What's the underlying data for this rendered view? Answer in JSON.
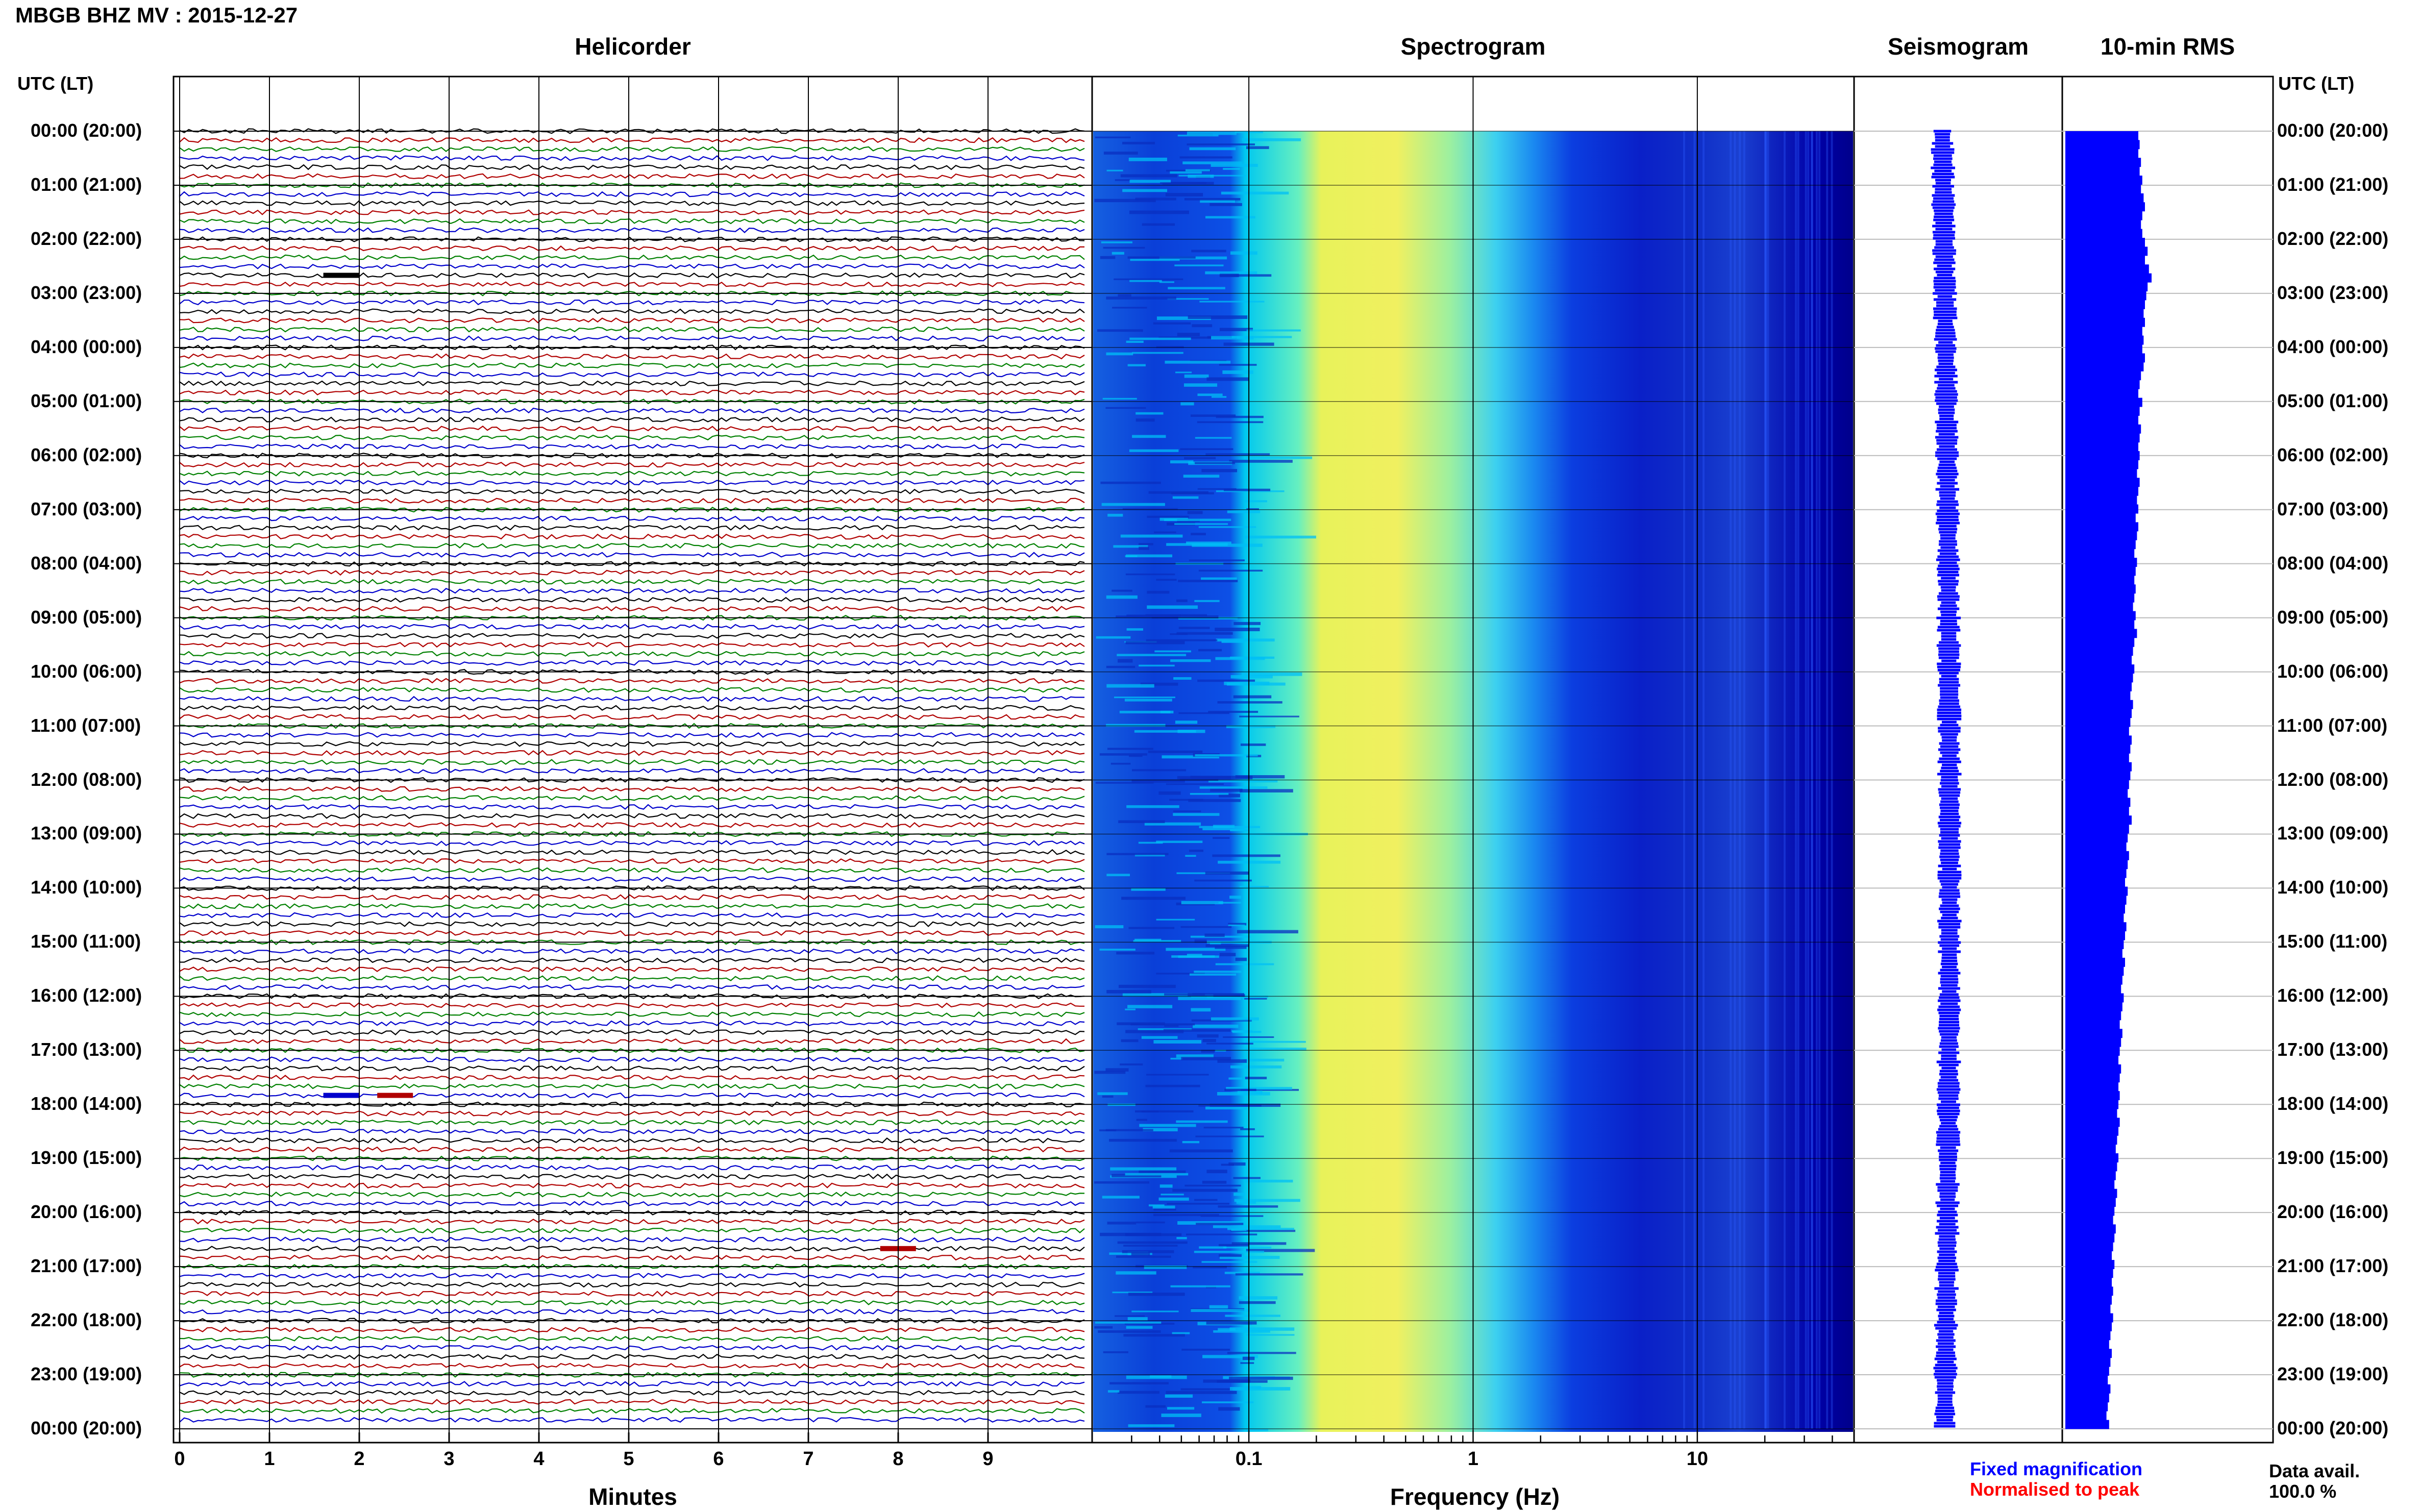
{
  "page": {
    "title": "MBGB BHZ MV : 2015-12-27",
    "time_axis_label": "UTC (LT)",
    "time_labels": [
      "00:00 (20:00)",
      "01:00 (21:00)",
      "02:00 (22:00)",
      "03:00 (23:00)",
      "04:00 (00:00)",
      "05:00 (01:00)",
      "06:00 (02:00)",
      "07:00 (03:00)",
      "08:00 (04:00)",
      "09:00 (05:00)",
      "10:00 (06:00)",
      "11:00 (07:00)",
      "12:00 (08:00)",
      "13:00 (09:00)",
      "14:00 (10:00)",
      "15:00 (11:00)",
      "16:00 (12:00)",
      "17:00 (13:00)",
      "18:00 (14:00)",
      "19:00 (15:00)",
      "20:00 (16:00)",
      "21:00 (17:00)",
      "22:00 (18:00)",
      "23:00 (19:00)",
      "00:00 (20:00)"
    ]
  },
  "panels": {
    "helicorder": {
      "title": "Helicorder",
      "xlabel": "Minutes",
      "xticks": [
        "0",
        "1",
        "2",
        "3",
        "4",
        "5",
        "6",
        "7",
        "8",
        "9"
      ],
      "trace_colors": [
        "#000000",
        "#b00000",
        "#008000",
        "#0000cc"
      ]
    },
    "spectrogram": {
      "title": "Spectrogram",
      "xlabel": "Frequency (Hz)",
      "xticks": [
        "0.1",
        "1",
        "10"
      ],
      "colormap": [
        "#00008b",
        "#0000ff",
        "#1e90ff",
        "#00ffff",
        "#ffff00"
      ]
    },
    "seismogram": {
      "title": "Seismogram"
    },
    "rms": {
      "title": "10-min RMS"
    }
  },
  "legend": {
    "fixed": "Fixed magnification",
    "fixed_color": "#0000ff",
    "normalised": "Normalised to peak",
    "normalised_color": "#ff0000"
  },
  "availability": {
    "label": "Data avail.",
    "value": "100.0 %"
  },
  "chart_data": {
    "type": "heatmap",
    "title": "MBGB BHZ MV : 2015-12-27",
    "helicorder": {
      "x_range_minutes": [
        0,
        10
      ],
      "rows_per_hour": 6,
      "hours": 24,
      "notable_events": [
        {
          "time_utc": "02:40",
          "minute": 1.6,
          "color": "black"
        },
        {
          "time_utc": "17:50",
          "minute": 1.6,
          "color": "blue"
        },
        {
          "time_utc": "17:50",
          "minute": 2.2,
          "color": "darkred"
        },
        {
          "time_utc": "20:40",
          "minute": 7.8,
          "color": "darkred"
        }
      ]
    },
    "spectrogram": {
      "x_scale": "log",
      "x_range_hz": [
        0.02,
        50
      ],
      "peak_band_hz": [
        0.2,
        0.6
      ],
      "description_levels": [
        "low below 0.12 Hz",
        "peak 0.2-0.6 Hz",
        "falling above 1 Hz",
        "minimum above 5 Hz"
      ]
    },
    "rms_10min": {
      "relative_values": [
        0.55,
        0.56,
        0.55,
        0.57,
        0.56,
        0.58,
        0.57,
        0.59,
        0.6,
        0.58,
        0.57,
        0.58,
        0.6,
        0.62,
        0.6,
        0.63,
        0.65,
        0.62,
        0.61,
        0.6,
        0.59,
        0.6,
        0.58,
        0.59,
        0.58,
        0.6,
        0.59,
        0.57,
        0.56,
        0.55,
        0.58,
        0.56,
        0.55,
        0.57,
        0.56,
        0.55,
        0.56,
        0.55,
        0.54,
        0.56,
        0.55,
        0.54,
        0.55,
        0.53,
        0.55,
        0.54,
        0.53,
        0.52,
        0.54,
        0.53,
        0.52,
        0.53,
        0.52,
        0.51,
        0.53,
        0.52,
        0.54,
        0.52,
        0.51,
        0.5,
        0.52,
        0.51,
        0.5,
        0.49,
        0.51,
        0.5,
        0.49,
        0.48,
        0.5,
        0.49,
        0.48,
        0.5,
        0.49,
        0.48,
        0.47,
        0.49,
        0.48,
        0.5,
        0.48,
        0.47,
        0.46,
        0.48,
        0.47,
        0.46,
        0.45,
        0.47,
        0.46,
        0.45,
        0.44,
        0.46,
        0.45,
        0.44,
        0.43,
        0.45,
        0.44,
        0.43,
        0.42,
        0.44,
        0.43,
        0.42,
        0.41,
        0.43,
        0.42,
        0.41,
        0.4,
        0.42,
        0.41,
        0.4,
        0.41,
        0.4,
        0.39,
        0.41,
        0.4,
        0.39,
        0.38,
        0.4,
        0.39,
        0.38,
        0.37,
        0.39,
        0.38,
        0.37,
        0.36,
        0.38,
        0.37,
        0.36,
        0.35,
        0.37,
        0.36,
        0.35,
        0.36,
        0.35,
        0.34,
        0.36,
        0.35,
        0.34,
        0.33,
        0.35,
        0.34,
        0.33,
        0.32,
        0.34,
        0.33,
        0.32,
        0.31,
        0.33
      ]
    }
  }
}
